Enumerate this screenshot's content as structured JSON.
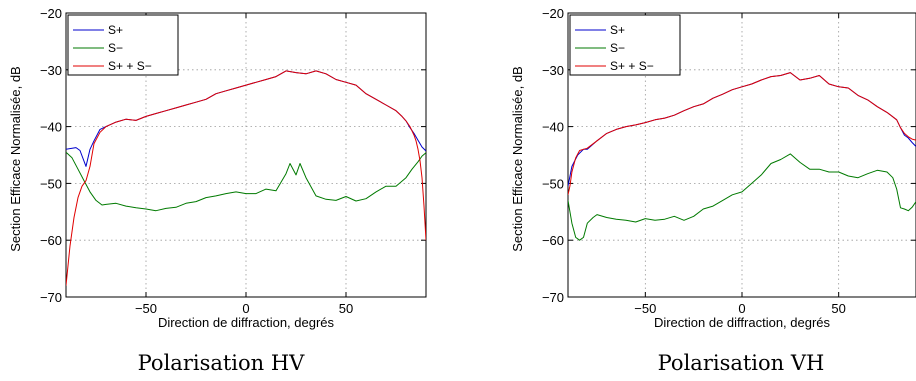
{
  "chart_data": [
    {
      "type": "line",
      "caption": "Polarisation HV",
      "xlabel": "Direction de diffraction, degrés",
      "ylabel": "Section Efficace Normalisée, dB",
      "xlim": [
        -90,
        90
      ],
      "ylim": [
        -70,
        -20
      ],
      "xticks": [
        -50,
        0,
        50
      ],
      "yticks": [
        -70,
        -60,
        -50,
        -40,
        -30,
        -20
      ],
      "xtick_labels": [
        "−50",
        "0",
        "50"
      ],
      "ytick_labels": [
        "−70",
        "−60",
        "−50",
        "−40",
        "−30",
        "−20"
      ],
      "grid": true,
      "legend_position": "top-left",
      "series": [
        {
          "name": "S+",
          "color": "#0000cc",
          "x": [
            -90,
            -85,
            -83,
            -80,
            -78,
            -76,
            -73,
            -70,
            -65,
            -60,
            -55,
            -50,
            -45,
            -40,
            -35,
            -30,
            -25,
            -20,
            -15,
            -10,
            -5,
            0,
            5,
            10,
            15,
            20,
            25,
            30,
            35,
            40,
            45,
            50,
            55,
            60,
            65,
            70,
            75,
            78,
            80,
            82,
            84,
            86,
            88,
            90
          ],
          "y": [
            -44,
            -43.7,
            -44.2,
            -47,
            -44,
            -42.5,
            -40.5,
            -40,
            -39.2,
            -38.7,
            -38.9,
            -38.2,
            -37.7,
            -37.2,
            -36.7,
            -36.2,
            -35.7,
            -35.2,
            -34.2,
            -33.7,
            -33.2,
            -32.7,
            -32.2,
            -31.7,
            -31.2,
            -30.2,
            -30.5,
            -30.7,
            -30.2,
            -30.7,
            -31.7,
            -32.2,
            -32.7,
            -34.2,
            -35.2,
            -36.2,
            -37.2,
            -38.2,
            -39,
            -40.2,
            -41.2,
            -42.4,
            -43.6,
            -44.3
          ]
        },
        {
          "name": "S−",
          "color": "#007a00",
          "x": [
            -90,
            -87,
            -84,
            -81,
            -78,
            -75,
            -72,
            -70,
            -65,
            -60,
            -55,
            -50,
            -45,
            -40,
            -35,
            -30,
            -25,
            -20,
            -15,
            -10,
            -5,
            0,
            5,
            10,
            15,
            20,
            22,
            25,
            27,
            30,
            35,
            40,
            45,
            50,
            55,
            60,
            65,
            70,
            75,
            80,
            83,
            86,
            88,
            90
          ],
          "y": [
            -44.5,
            -45.5,
            -47.5,
            -49.5,
            -51.5,
            -53,
            -53.8,
            -53.7,
            -53.5,
            -54,
            -54.3,
            -54.5,
            -54.8,
            -54.4,
            -54.2,
            -53.5,
            -53.2,
            -52.5,
            -52.2,
            -51.8,
            -51.5,
            -51.8,
            -51.8,
            -51,
            -51.3,
            -48.3,
            -46.5,
            -48.5,
            -46.5,
            -49,
            -52.2,
            -52.8,
            -53,
            -52.3,
            -53.1,
            -52.7,
            -51.5,
            -50.5,
            -50.5,
            -49,
            -47.5,
            -46.2,
            -45.2,
            -44.6
          ]
        },
        {
          "name": "S+ + S−",
          "color": "#e00000",
          "x": [
            -90,
            -88,
            -86,
            -84,
            -82,
            -80,
            -78,
            -76,
            -73,
            -70,
            -65,
            -60,
            -55,
            -50,
            -45,
            -40,
            -35,
            -30,
            -25,
            -20,
            -15,
            -10,
            -5,
            0,
            5,
            10,
            15,
            20,
            25,
            30,
            35,
            40,
            45,
            50,
            55,
            60,
            65,
            70,
            75,
            78,
            80,
            82,
            84,
            85,
            86,
            87,
            88,
            89,
            90
          ],
          "y": [
            -68,
            -61,
            -56,
            -52.5,
            -50.5,
            -49.5,
            -47,
            -43,
            -41,
            -40,
            -39.2,
            -38.7,
            -38.9,
            -38.2,
            -37.7,
            -37.2,
            -36.7,
            -36.2,
            -35.7,
            -35.2,
            -34.2,
            -33.7,
            -33.2,
            -32.7,
            -32.2,
            -31.7,
            -31.2,
            -30.2,
            -30.5,
            -30.7,
            -30.2,
            -30.7,
            -31.7,
            -32.2,
            -32.7,
            -34.2,
            -35.2,
            -36.2,
            -37.2,
            -38.2,
            -39,
            -40,
            -41.5,
            -42.5,
            -44,
            -46,
            -49,
            -54,
            -60
          ]
        }
      ]
    },
    {
      "type": "line",
      "caption": "Polarisation VH",
      "xlabel": "Direction de diffraction, degrés",
      "ylabel": "Section Efficace Normalisée, dB",
      "xlim": [
        -90,
        90
      ],
      "ylim": [
        -70,
        -20
      ],
      "xticks": [
        -50,
        0,
        50
      ],
      "yticks": [
        -70,
        -60,
        -50,
        -40,
        -30,
        -20
      ],
      "xtick_labels": [
        "−50",
        "0",
        "50"
      ],
      "ytick_labels": [
        "−70",
        "−60",
        "−50",
        "−40",
        "−30",
        "−20"
      ],
      "grid": true,
      "legend_position": "top-left",
      "series": [
        {
          "name": "S+",
          "color": "#0000cc",
          "x": [
            -90,
            -88,
            -85,
            -82,
            -80,
            -75,
            -70,
            -65,
            -60,
            -55,
            -50,
            -45,
            -40,
            -35,
            -30,
            -25,
            -20,
            -15,
            -10,
            -5,
            0,
            5,
            10,
            15,
            20,
            25,
            30,
            35,
            40,
            45,
            50,
            55,
            60,
            65,
            70,
            75,
            80,
            82,
            84,
            86,
            88,
            90
          ],
          "y": [
            -50.5,
            -47,
            -45,
            -44,
            -44,
            -42.5,
            -41.2,
            -40.5,
            -40,
            -39.7,
            -39.3,
            -38.8,
            -38.5,
            -38,
            -37.2,
            -36.5,
            -36,
            -35,
            -34.3,
            -33.5,
            -33,
            -32.5,
            -31.8,
            -31.2,
            -31,
            -30.5,
            -31.8,
            -31.5,
            -31,
            -32.5,
            -33,
            -33.2,
            -34.5,
            -35.3,
            -36.5,
            -37.5,
            -38.8,
            -40.2,
            -41.5,
            -42,
            -42.8,
            -43.5
          ]
        },
        {
          "name": "S−",
          "color": "#007a00",
          "x": [
            -90,
            -88,
            -86,
            -84,
            -82,
            -80,
            -77,
            -75,
            -70,
            -65,
            -60,
            -55,
            -50,
            -45,
            -40,
            -35,
            -30,
            -25,
            -20,
            -15,
            -10,
            -5,
            0,
            5,
            10,
            15,
            20,
            25,
            30,
            35,
            40,
            45,
            50,
            55,
            60,
            65,
            70,
            75,
            78,
            80,
            82,
            84,
            86,
            88,
            90
          ],
          "y": [
            -53,
            -57,
            -59.5,
            -60,
            -59.5,
            -57,
            -56,
            -55.5,
            -56,
            -56.3,
            -56.5,
            -56.8,
            -56.2,
            -56.5,
            -56.3,
            -55.8,
            -56.5,
            -55.8,
            -54.5,
            -54,
            -53,
            -52,
            -51.5,
            -50,
            -48.5,
            -46.5,
            -45.8,
            -44.8,
            -46.3,
            -47.5,
            -47.5,
            -48,
            -48,
            -48.7,
            -49,
            -48.3,
            -47.7,
            -48,
            -49,
            -51,
            -54.3,
            -54.5,
            -54.8,
            -54.2,
            -53.2
          ]
        },
        {
          "name": "S+ + S−",
          "color": "#e00000",
          "x": [
            -90,
            -89,
            -88,
            -86,
            -84,
            -82,
            -80,
            -75,
            -70,
            -65,
            -60,
            -55,
            -50,
            -45,
            -40,
            -35,
            -30,
            -25,
            -20,
            -15,
            -10,
            -5,
            0,
            5,
            10,
            15,
            20,
            25,
            30,
            35,
            40,
            45,
            50,
            55,
            60,
            65,
            70,
            75,
            80,
            82,
            84,
            86,
            88,
            90
          ],
          "y": [
            -52,
            -50.5,
            -48,
            -45.5,
            -44.2,
            -44,
            -43.8,
            -42.5,
            -41.2,
            -40.5,
            -40,
            -39.7,
            -39.3,
            -38.8,
            -38.5,
            -38,
            -37.2,
            -36.5,
            -36,
            -35,
            -34.3,
            -33.5,
            -33,
            -32.5,
            -31.8,
            -31.2,
            -31,
            -30.5,
            -31.8,
            -31.5,
            -31,
            -32.5,
            -33,
            -33.2,
            -34.5,
            -35.3,
            -36.5,
            -37.5,
            -38.8,
            -40.2,
            -41.2,
            -41.8,
            -42.2,
            -42.4
          ]
        }
      ]
    }
  ]
}
